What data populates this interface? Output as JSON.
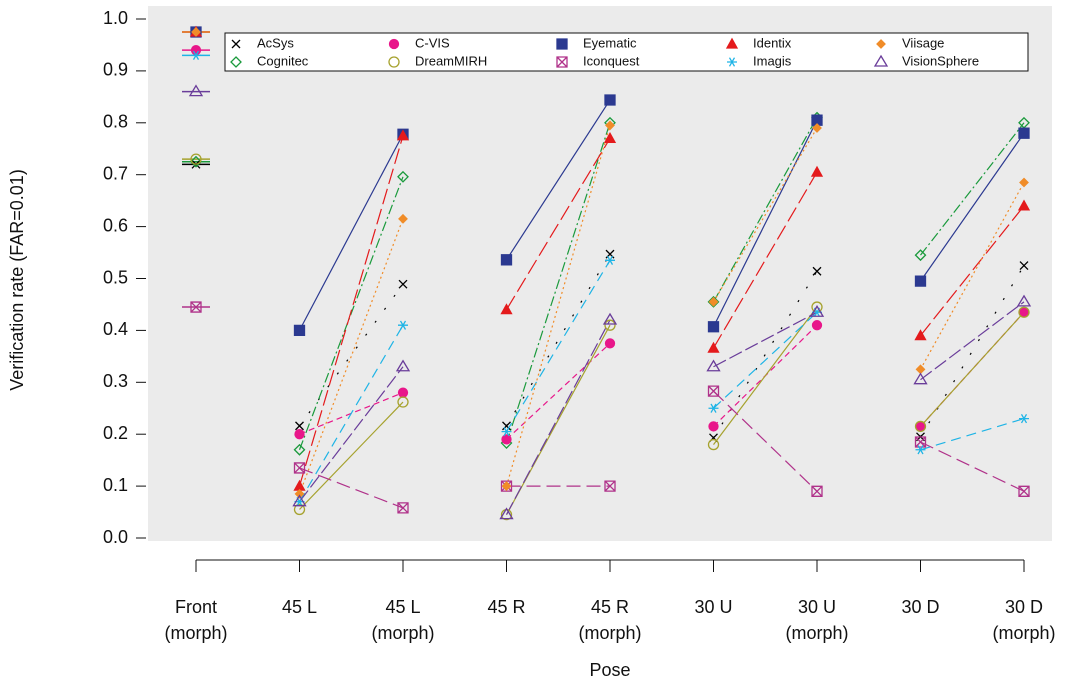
{
  "chart_data": {
    "type": "line",
    "xlabel": "Pose",
    "ylabel": "Verification rate (FAR=0.01)",
    "categories": [
      "Front\n(morph)",
      "45 L",
      "45 L\n(morph)",
      "45 R",
      "45 R\n(morph)",
      "30 U",
      "30 U\n(morph)",
      "30 D",
      "30 D\n(morph)"
    ],
    "ylim": [
      0,
      1
    ],
    "yticks": [
      {
        "value": 0,
        "label": "0.0"
      },
      0.1,
      0.2,
      0.3,
      0.4,
      0.5,
      0.6,
      0.7,
      0.8,
      0.9,
      {
        "value": 1,
        "label": "1.0"
      }
    ],
    "series": [
      {
        "name": "AcSys",
        "color": "#000000",
        "marker": "cross",
        "dash": "2,14",
        "values": [
          0.72,
          0.216,
          0.489,
          0.216,
          0.547,
          0.193,
          0.514,
          0.195,
          0.525
        ]
      },
      {
        "name": "Cognitec",
        "color": "#1a9a3c",
        "marker": "diamond-open",
        "dash": "10,3,2,3",
        "values": [
          0.725,
          0.17,
          0.696,
          0.183,
          0.8,
          0.455,
          0.81,
          0.545,
          0.8
        ]
      },
      {
        "name": "C-VIS",
        "color": "#e8178a",
        "marker": "circle",
        "dash": "6,4",
        "values": [
          0.94,
          0.2,
          0.28,
          0.19,
          0.375,
          0.215,
          0.41,
          0.215,
          0.435
        ]
      },
      {
        "name": "DreamMIRH",
        "color": "#a6a22e",
        "marker": "circle-open",
        "dash": "",
        "values": [
          0.73,
          0.055,
          0.262,
          0.045,
          0.41,
          0.18,
          0.445,
          0.215,
          0.435
        ]
      },
      {
        "name": "Eyematic",
        "color": "#2b3990",
        "marker": "square",
        "dash": "",
        "values": [
          0.975,
          0.4,
          0.778,
          0.536,
          0.844,
          0.407,
          0.805,
          0.495,
          0.78
        ]
      },
      {
        "name": "Iconquest",
        "color": "#b0328a",
        "marker": "square-x",
        "dash": "14,6",
        "values": [
          0.445,
          0.135,
          0.058,
          0.1,
          0.1,
          0.283,
          0.09,
          0.185,
          0.09
        ]
      },
      {
        "name": "Identix",
        "color": "#e41a1c",
        "marker": "triangle",
        "dash": "16,5",
        "values": [
          0.975,
          0.1,
          0.775,
          0.44,
          0.77,
          0.366,
          0.705,
          0.39,
          0.64
        ]
      },
      {
        "name": "Imagis",
        "color": "#1eb4e6",
        "marker": "asterisk",
        "dash": "10,6",
        "values": [
          0.93,
          0.07,
          0.41,
          0.205,
          0.535,
          0.25,
          0.435,
          0.17,
          0.23
        ]
      },
      {
        "name": "Viisage",
        "color": "#f08c28",
        "marker": "diamond",
        "dash": "2,3",
        "values": [
          0.975,
          0.085,
          0.615,
          0.1,
          0.795,
          0.455,
          0.79,
          0.325,
          0.685
        ]
      },
      {
        "name": "VisionSphere",
        "color": "#6a3d9a",
        "marker": "triangle-open",
        "dash": "14,4",
        "values": [
          0.86,
          0.07,
          0.33,
          0.045,
          0.42,
          0.33,
          0.435,
          0.305,
          0.455
        ]
      }
    ]
  }
}
